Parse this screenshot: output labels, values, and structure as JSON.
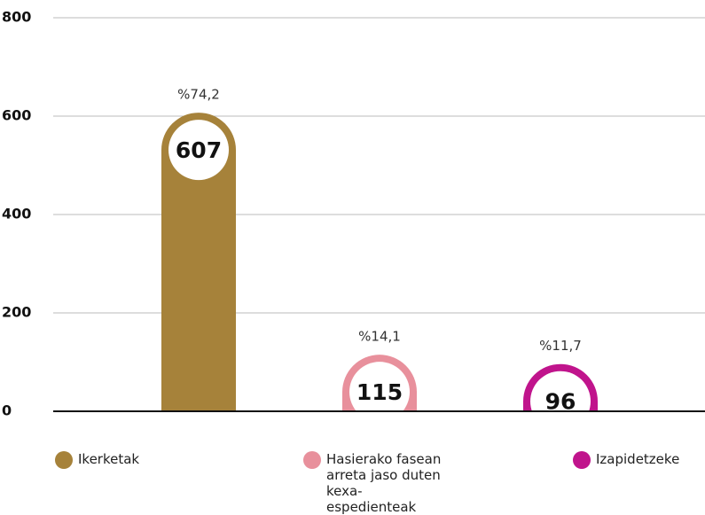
{
  "chart_data": {
    "type": "bar",
    "categories": [
      "Ikerketak",
      "Hasierako fasean arreta jaso duten kexa-espedienteak",
      "Izapidetzeke"
    ],
    "values": [
      607,
      115,
      96
    ],
    "percent_labels": [
      "%74,2",
      "%14,1",
      "%11,7"
    ],
    "colors": [
      "#a6823a",
      "#e8909c",
      "#c0148c"
    ],
    "ylim": [
      0,
      800
    ],
    "yticks": [
      0,
      200,
      400,
      600,
      800
    ],
    "grid": true,
    "legend": "bottom"
  }
}
